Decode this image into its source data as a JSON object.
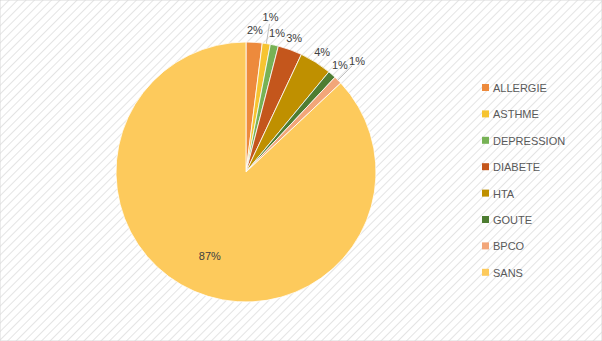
{
  "chart_data": {
    "type": "pie",
    "categories": [
      "ALLERGIE",
      "ASTHME",
      "DEPRESSION",
      "DIABETE",
      "HTA",
      "GOUTE",
      "BPCO",
      "SANS"
    ],
    "values": [
      2,
      1,
      1,
      3,
      4,
      1,
      1,
      87
    ],
    "value_labels": [
      "2%",
      "1%",
      "1%",
      "3%",
      "4%",
      "1%",
      "1%",
      "87%"
    ],
    "colors": [
      "#ed8a3c",
      "#f6c431",
      "#77b255",
      "#c4561c",
      "#bf9000",
      "#4e7d32",
      "#f2a679",
      "#fdca5c"
    ],
    "data_labels": true,
    "legend": "right"
  }
}
